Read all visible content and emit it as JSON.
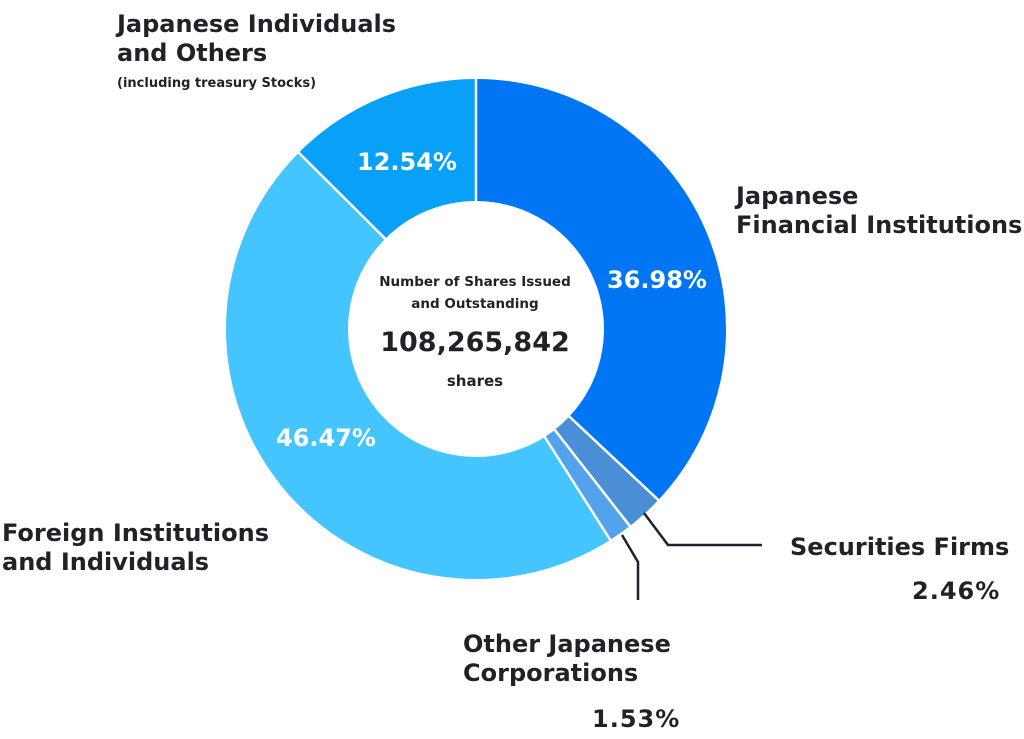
{
  "chart_data": {
    "type": "pie",
    "variant": "donut",
    "start_angle_deg": 0,
    "direction": "clockwise",
    "slices": [
      {
        "name": "Japanese Financial Institutions",
        "value": 36.98,
        "label": "36.98%",
        "color": "#0076f5",
        "label_placement": "inside"
      },
      {
        "name": "Securities Firms",
        "value": 2.46,
        "label": "2.46%",
        "color": "#4a8fd6",
        "label_placement": "outside-leader"
      },
      {
        "name": "Other Japanese Corporations",
        "value": 1.53,
        "label": "1.53%",
        "color": "#53a3ec",
        "label_placement": "outside-leader"
      },
      {
        "name": "Foreign Institutions and Individuals",
        "value": 46.47,
        "label": "46.47%",
        "color": "#45c5ff",
        "label_placement": "inside"
      },
      {
        "name": "Japanese Individuals and Others",
        "value": 12.54,
        "label": "12.54%",
        "color": "#09a0f8",
        "label_placement": "inside"
      }
    ],
    "center": {
      "caption_line1": "Number of Shares Issued",
      "caption_line2": "and Outstanding",
      "total": "108,265,842",
      "unit": "shares"
    }
  },
  "labels": {
    "jfi_line1": "Japanese",
    "jfi_line2": "Financial Institutions",
    "securities": "Securities Firms",
    "securities_pct": "2.46%",
    "other_line1": "Other Japanese",
    "other_line2": "Corporations",
    "other_pct": "1.53%",
    "foreign_line1": "Foreign Institutions",
    "foreign_line2": "and Individuals",
    "jio_line1": "Japanese Individuals",
    "jio_line2": "and Others",
    "jio_note": "(including treasury Stocks)"
  },
  "colors": {
    "text": "#1f2329",
    "slice_text": "#ffffff",
    "divider": "#ffffff"
  }
}
